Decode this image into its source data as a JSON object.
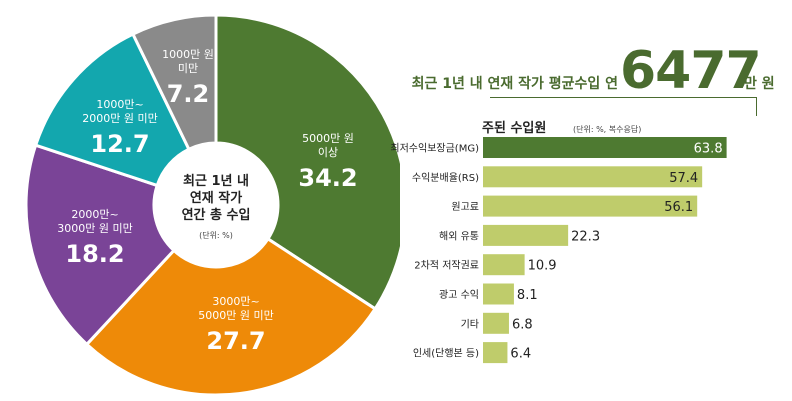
{
  "header": {
    "prefix": "최근 1년 내 연재 작가 평균수입 연",
    "value": "6477",
    "unit": "만 원"
  },
  "donut_center": {
    "line1": "최근 1년 내",
    "line2": "연재 작가",
    "line3": "연간 총 수입",
    "unit": "(단위: %)"
  },
  "bar_section": {
    "title": "주된 수입원",
    "unit": "(단위: %, 복수응답)"
  },
  "colors": {
    "dark_green": "#4e7a31",
    "light_green": "#bfcc6b",
    "orange": "#ee8a08",
    "purple": "#7a4497",
    "teal": "#13a7ae",
    "gray": "#8a8a8a"
  },
  "chart_data": [
    {
      "type": "pie",
      "title": "최근 1년 내 연재 작가 연간 총 수입",
      "unit": "(단위: %)",
      "slices": [
        {
          "label": [
            "5000만 원",
            "이상"
          ],
          "value": 34.2,
          "display": "34.2",
          "color": "#4e7a31"
        },
        {
          "label": [
            "3000만~",
            "5000만 원 미만"
          ],
          "value": 27.7,
          "display": "27.7",
          "color": "#ee8a08"
        },
        {
          "label": [
            "2000만~",
            "3000만 원 미만"
          ],
          "value": 18.2,
          "display": "18.2",
          "color": "#7a4497"
        },
        {
          "label": [
            "1000만~",
            "2000만 원 미만"
          ],
          "value": 12.7,
          "display": "12.7",
          "color": "#13a7ae"
        },
        {
          "label": [
            "1000만 원",
            "미만"
          ],
          "value": 7.2,
          "display": "7.2",
          "color": "#8a8a8a"
        }
      ]
    },
    {
      "type": "bar",
      "title": "주된 수입원",
      "unit": "(단위: %, 복수응답)",
      "categories": [
        "최저수익보장금(MG)",
        "수익분배율(RS)",
        "원고료",
        "해외 유통",
        "2차적 저작권료",
        "광고 수익",
        "기타",
        "인세(단행본 등)"
      ],
      "values": [
        63.8,
        57.4,
        56.1,
        22.3,
        10.9,
        8.1,
        6.8,
        6.4
      ],
      "labels": [
        "63.8",
        "57.4",
        "56.1",
        "22.3",
        "10.9",
        "8.1",
        "6.8",
        "6.4"
      ],
      "xlim": [
        0,
        66
      ]
    }
  ]
}
